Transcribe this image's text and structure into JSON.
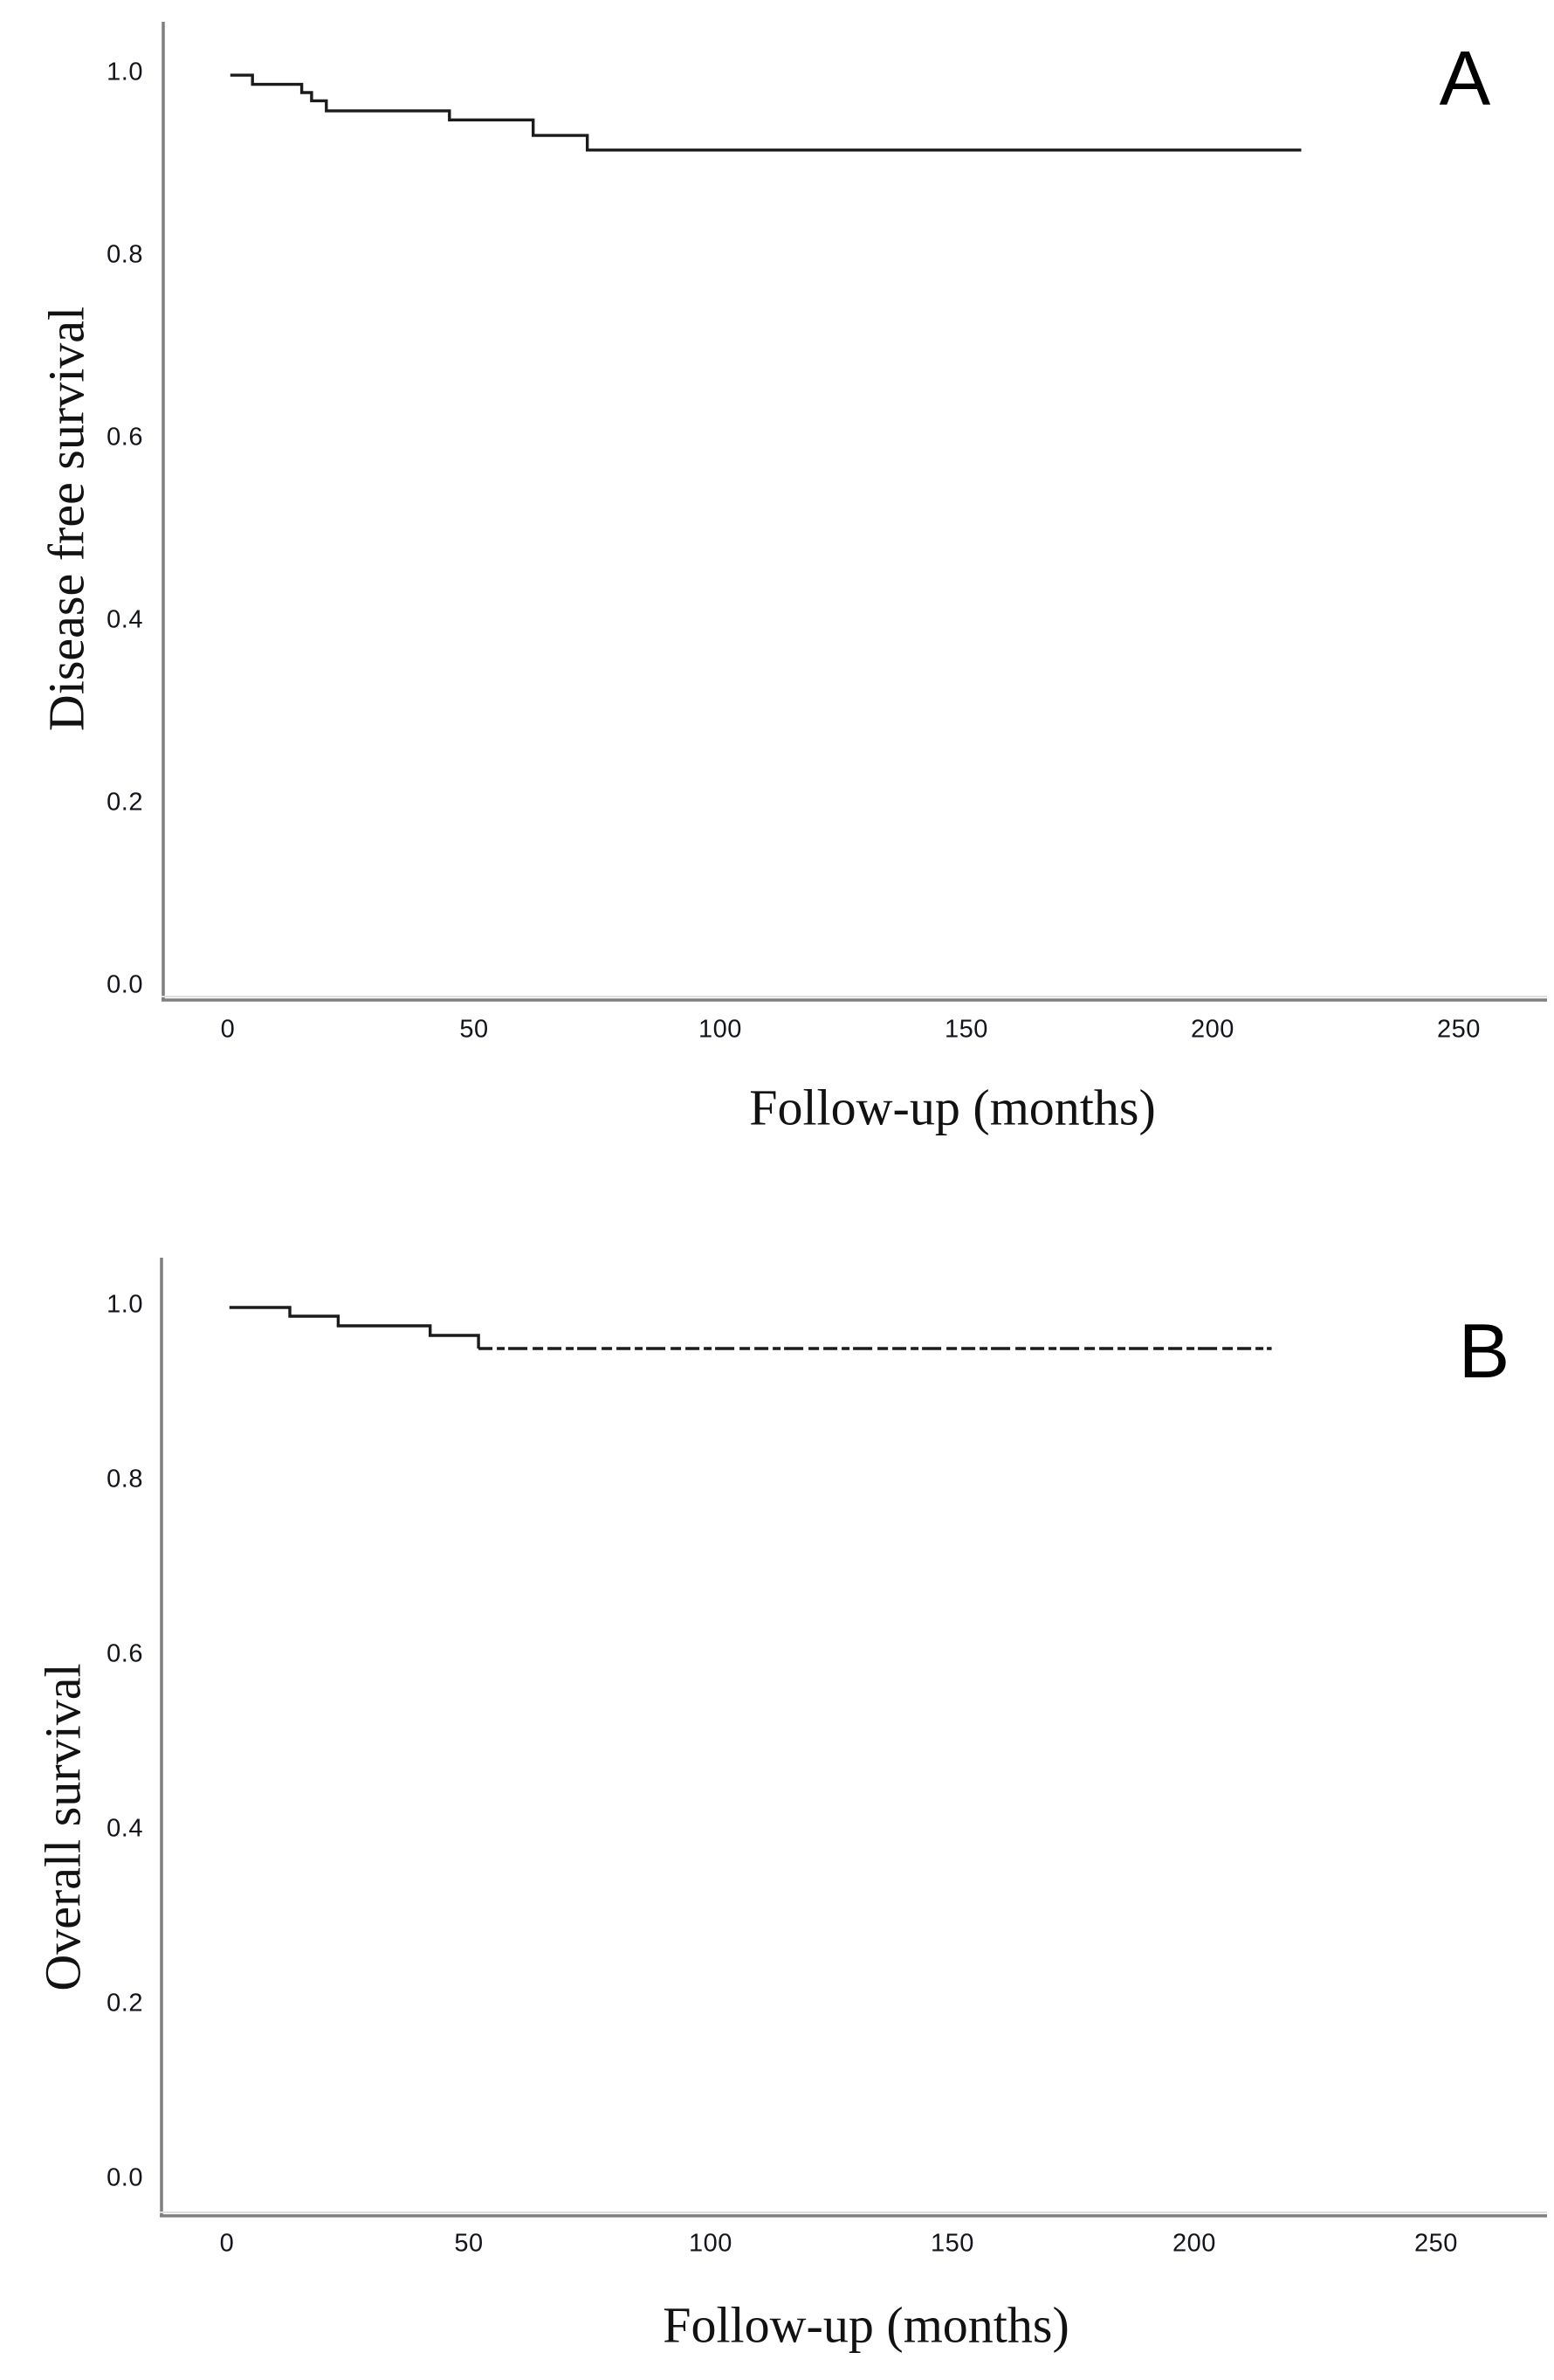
{
  "figure": {
    "background": "#ffffff",
    "curve_color": "#1b1b1b",
    "axis_line_color": "#7f7f7f",
    "tick_text_color": "#13151c"
  },
  "chart_data": [
    {
      "type": "line",
      "chart_style": "kaplan-meier-step",
      "panel_letter": "A",
      "title": "",
      "xlabel": "Follow-up (months)",
      "ylabel": "Disease free survival",
      "xlim": [
        -13,
        268
      ],
      "ylim": [
        -0.02,
        1.06
      ],
      "grid": false,
      "legend": false,
      "xtick_labels": [
        "0",
        "50",
        "100",
        "150",
        "200",
        "250"
      ],
      "xtick_values": [
        0,
        50,
        100,
        150,
        200,
        250
      ],
      "ytick_labels": [
        "1.0",
        "0.8",
        "0.6",
        "0.4",
        "0.2",
        "0.0"
      ],
      "ytick_values": [
        1.0,
        0.8,
        0.6,
        0.4,
        0.2,
        0.0
      ],
      "series": [
        {
          "name": "Disease free survival",
          "color": "#1b1b1b",
          "line_style": "solid",
          "steps": [
            [
              0.5,
              0.997
            ],
            [
              5,
              0.987
            ],
            [
              15,
              0.978
            ],
            [
              17,
              0.969
            ],
            [
              20,
              0.958
            ],
            [
              45,
              0.948
            ],
            [
              62,
              0.931
            ],
            [
              73,
              0.915
            ]
          ],
          "end_x": 218,
          "final_value": 0.915,
          "final_segment_style": "solid"
        }
      ]
    },
    {
      "type": "line",
      "chart_style": "kaplan-meier-step",
      "panel_letter": "B",
      "title": "",
      "xlabel": "Follow-up (months)",
      "ylabel": "Overall survival",
      "xlim": [
        -13.5,
        273
      ],
      "ylim": [
        -0.04,
        1.05
      ],
      "grid": false,
      "legend": false,
      "xtick_labels": [
        "0",
        "50",
        "100",
        "150",
        "200",
        "250"
      ],
      "xtick_values": [
        0,
        50,
        100,
        150,
        200,
        250
      ],
      "ytick_labels": [
        "1.0",
        "0.8",
        "0.6",
        "0.4",
        "0.2",
        "0.0"
      ],
      "ytick_values": [
        1.0,
        0.8,
        0.6,
        0.4,
        0.2,
        0.0
      ],
      "series": [
        {
          "name": "Overall survival",
          "color": "#1b1b1b",
          "line_style": "solid",
          "steps": [
            [
              0.5,
              0.997
            ],
            [
              13,
              0.987
            ],
            [
              23,
              0.976
            ],
            [
              42,
              0.965
            ],
            [
              52,
              0.95
            ]
          ],
          "end_x": 216,
          "final_value": 0.95,
          "final_segment_style": "dashed"
        }
      ]
    }
  ]
}
